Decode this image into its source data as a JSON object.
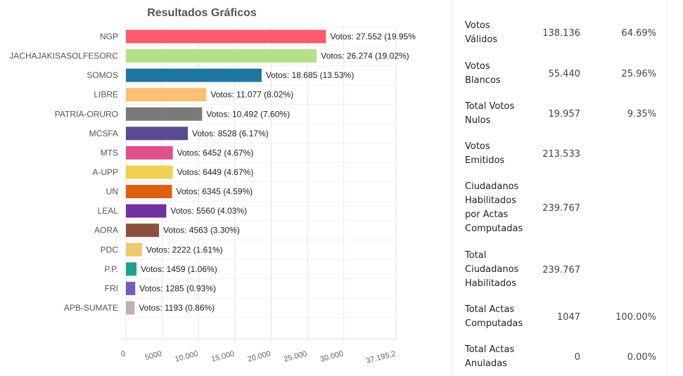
{
  "chart_data": {
    "type": "bar",
    "orientation": "horizontal",
    "title": "Resultados Gráficos",
    "categories": [
      "NGP",
      "JACHAJAKISASOLFESORC",
      "SOMOS",
      "LIBRE",
      "PATRIA-ORURO",
      "MCSFA",
      "MTS",
      "A-UPP",
      "UN",
      "LEAL",
      "AORA",
      "PDC",
      "P.P.",
      "FRI",
      "APB-SUMATE"
    ],
    "values": [
      27552,
      26274,
      18685,
      11077,
      10492,
      8528,
      6452,
      6449,
      6345,
      5560,
      4563,
      2222,
      1459,
      1285,
      1193
    ],
    "data_labels": [
      "Votos: 27.552 (19.95%",
      "Votos: 26.274 (19.02%)",
      "Votos: 18.685 (13.53%)",
      "Votos: 11.077 (8.02%)",
      "Votos: 10.492 (7.60%)",
      "Votos: 8528 (6.17%)",
      "Votos: 6452 (4.67%)",
      "Votos: 6449 (4.67%)",
      "Votos: 6345 (4.59%)",
      "Votos: 5560 (4.03%)",
      "Votos: 4563 (3.30%)",
      "Votos: 2222 (1.61%)",
      "Votos: 1459 (1.06%)",
      "Votos: 1285 (0.93%)",
      "Votos: 1193 (0.86%)"
    ],
    "colors": [
      "#ff5a6e",
      "#b5e08a",
      "#1f77a0",
      "#ffbf70",
      "#7a7a7a",
      "#5b4a8f",
      "#e0508a",
      "#f0d050",
      "#e06010",
      "#7030a0",
      "#8b5040",
      "#f0c870",
      "#20a090",
      "#7060b8",
      "#c0b0b0"
    ],
    "xlim": [
      0,
      37195.2
    ],
    "xticks": [
      0,
      5000,
      10000,
      15000,
      20000,
      25000,
      30000,
      37195.2
    ],
    "xtick_labels": [
      "0",
      "5000",
      "10.000",
      "15.000",
      "20.000",
      "25.000",
      "30.000",
      "37.195,2"
    ],
    "grid": true
  },
  "summary": [
    {
      "label": [
        "Votos",
        "Válidos"
      ],
      "value": "138.136",
      "pct": "64.69%"
    },
    {
      "label": [
        "Votos",
        "Blancos"
      ],
      "value": "55.440",
      "pct": "25.96%"
    },
    {
      "label": [
        "Total Votos",
        "Nulos"
      ],
      "value": "19.957",
      "pct": "9.35%"
    },
    {
      "label": [
        "Votos",
        "Emitidos"
      ],
      "value": "213.533",
      "pct": ""
    },
    {
      "label": [
        "Ciudadanos",
        "Habilitados",
        "por Actas",
        "Computadas"
      ],
      "value": "239.767",
      "pct": ""
    },
    {
      "label": [
        "Total",
        "Ciudadanos",
        "Habilitados"
      ],
      "value": "239.767",
      "pct": ""
    },
    {
      "label": [
        "Total Actas",
        "Computadas"
      ],
      "value": "1047",
      "pct": "100.00%"
    },
    {
      "label": [
        "Total Actas",
        "Anuladas"
      ],
      "value": "0",
      "pct": "0.00%"
    }
  ]
}
